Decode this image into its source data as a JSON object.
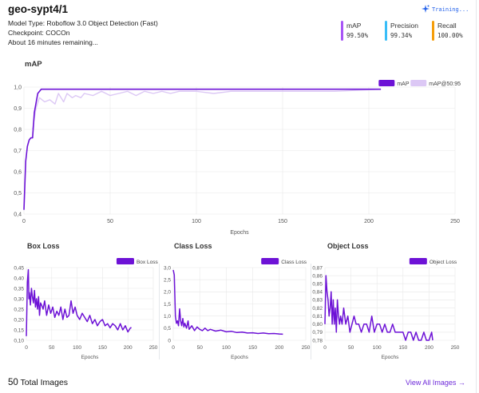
{
  "header": {
    "title": "geo-sypt4/1",
    "model_type": "Model Type: Roboflow 3.0 Object Detection (Fast)",
    "checkpoint": "Checkpoint: COCOn",
    "eta": "About 16 minutes remaining...",
    "status": "Training...",
    "status_icon": "sparkle-icon"
  },
  "metrics": [
    {
      "label": "mAP",
      "value": "99.50%",
      "color": "#a855f7"
    },
    {
      "label": "Precision",
      "value": "99.34%",
      "color": "#38bdf8"
    },
    {
      "label": "Recall",
      "value": "100.00%",
      "color": "#f59e0b"
    }
  ],
  "colors": {
    "primary": "#6d12d6",
    "secondary": "#dcc8f5",
    "grid": "#e8e8e8",
    "link": "#6d28d9"
  },
  "chart_data": [
    {
      "type": "line",
      "title": "mAP",
      "xlabel": "Epochs",
      "ylabel": "",
      "xlim": [
        0,
        250
      ],
      "ylim": [
        0.4,
        1.0
      ],
      "xticks": [
        0,
        50,
        100,
        150,
        200,
        250
      ],
      "yticks": [
        0.4,
        0.5,
        0.6,
        0.7,
        0.8,
        0.9,
        1.0
      ],
      "ytick_labels": [
        "0,4",
        "0,5",
        "0,6",
        "0,7",
        "0,8",
        "0,9",
        "1,0"
      ],
      "grid": true,
      "legend": "top-right",
      "series": [
        {
          "name": "mAP",
          "color": "#6d12d6",
          "x": [
            0,
            1,
            2,
            3,
            4,
            5,
            6,
            8,
            10,
            15,
            20,
            30,
            50,
            100,
            150,
            207
          ],
          "y": [
            0.42,
            0.65,
            0.72,
            0.75,
            0.76,
            0.76,
            0.88,
            0.97,
            0.99,
            0.99,
            0.99,
            0.99,
            0.99,
            0.99,
            0.99,
            0.99
          ]
        },
        {
          "name": "mAP@50:95",
          "color": "#dcc8f5",
          "x": [
            5,
            7,
            9,
            12,
            15,
            18,
            20,
            23,
            25,
            28,
            30,
            33,
            35,
            40,
            45,
            50,
            55,
            60,
            65,
            70,
            75,
            80,
            85,
            90,
            100,
            110,
            120,
            140,
            160,
            180,
            207
          ],
          "y": [
            0.8,
            0.9,
            0.95,
            0.93,
            0.94,
            0.92,
            0.97,
            0.93,
            0.97,
            0.95,
            0.96,
            0.95,
            0.97,
            0.96,
            0.98,
            0.96,
            0.97,
            0.98,
            0.96,
            0.98,
            0.97,
            0.98,
            0.97,
            0.98,
            0.98,
            0.97,
            0.98,
            0.98,
            0.98,
            0.98,
            0.99
          ]
        }
      ]
    },
    {
      "type": "line",
      "title": "Box Loss",
      "xlabel": "Epochs",
      "xlim": [
        0,
        250
      ],
      "ylim": [
        0.1,
        0.45
      ],
      "xticks": [
        0,
        50,
        100,
        150,
        200,
        250
      ],
      "yticks": [
        0.1,
        0.15,
        0.2,
        0.25,
        0.3,
        0.35,
        0.4,
        0.45
      ],
      "ytick_labels": [
        "0,10",
        "0,15",
        "0,20",
        "0,25",
        "0,30",
        "0,35",
        "0,40",
        "0,45"
      ],
      "grid": true,
      "legend": "top-right",
      "series": [
        {
          "name": "Box Loss",
          "color": "#6d12d6",
          "x": [
            0,
            2,
            4,
            5,
            6,
            8,
            10,
            12,
            14,
            16,
            18,
            20,
            22,
            24,
            26,
            28,
            30,
            33,
            36,
            40,
            44,
            48,
            52,
            56,
            60,
            64,
            68,
            72,
            76,
            80,
            84,
            88,
            92,
            96,
            100,
            105,
            110,
            115,
            120,
            125,
            130,
            135,
            140,
            145,
            150,
            155,
            160,
            165,
            170,
            175,
            180,
            185,
            190,
            195,
            200,
            205,
            207
          ],
          "y": [
            0.12,
            0.38,
            0.44,
            0.3,
            0.33,
            0.27,
            0.35,
            0.31,
            0.28,
            0.34,
            0.26,
            0.3,
            0.25,
            0.31,
            0.22,
            0.28,
            0.27,
            0.25,
            0.29,
            0.22,
            0.27,
            0.23,
            0.26,
            0.21,
            0.24,
            0.22,
            0.26,
            0.2,
            0.25,
            0.21,
            0.22,
            0.29,
            0.23,
            0.26,
            0.22,
            0.2,
            0.23,
            0.21,
            0.19,
            0.22,
            0.18,
            0.2,
            0.17,
            0.19,
            0.2,
            0.17,
            0.18,
            0.16,
            0.18,
            0.17,
            0.15,
            0.18,
            0.15,
            0.17,
            0.14,
            0.16,
            0.16
          ]
        }
      ]
    },
    {
      "type": "line",
      "title": "Class Loss",
      "xlabel": "Epochs",
      "xlim": [
        0,
        250
      ],
      "ylim": [
        0,
        3.0
      ],
      "xticks": [
        0,
        50,
        100,
        150,
        200,
        250
      ],
      "yticks": [
        0,
        0.5,
        1.0,
        1.5,
        2.0,
        2.5,
        3.0
      ],
      "ytick_labels": [
        "0",
        "0,5",
        "1,0",
        "1,5",
        "2,0",
        "2,5",
        "3,0"
      ],
      "grid": true,
      "legend": "top-right",
      "series": [
        {
          "name": "Class Loss",
          "color": "#6d12d6",
          "x": [
            0,
            2,
            4,
            6,
            8,
            10,
            12,
            14,
            16,
            18,
            20,
            22,
            25,
            28,
            30,
            35,
            40,
            45,
            50,
            55,
            60,
            65,
            70,
            80,
            90,
            100,
            110,
            120,
            130,
            140,
            150,
            160,
            170,
            180,
            190,
            200,
            207
          ],
          "y": [
            2.9,
            2.7,
            1.0,
            0.7,
            0.8,
            0.6,
            1.3,
            0.8,
            0.6,
            0.9,
            0.55,
            0.7,
            0.5,
            0.8,
            0.45,
            0.6,
            0.4,
            0.55,
            0.45,
            0.4,
            0.5,
            0.4,
            0.45,
            0.38,
            0.42,
            0.35,
            0.37,
            0.32,
            0.34,
            0.3,
            0.31,
            0.28,
            0.3,
            0.27,
            0.28,
            0.26,
            0.25
          ]
        }
      ]
    },
    {
      "type": "line",
      "title": "Object Loss",
      "xlabel": "Epochs",
      "xlim": [
        0,
        250
      ],
      "ylim": [
        0.78,
        0.87
      ],
      "xticks": [
        0,
        50,
        100,
        150,
        200,
        250
      ],
      "yticks": [
        0.78,
        0.79,
        0.8,
        0.81,
        0.82,
        0.83,
        0.84,
        0.85,
        0.86,
        0.87
      ],
      "ytick_labels": [
        "0,78",
        "0,79",
        "0,80",
        "0,81",
        "0,82",
        "0,83",
        "0,84",
        "0,85",
        "0,86",
        "0,87"
      ],
      "grid": true,
      "legend": "top-right",
      "series": [
        {
          "name": "Object Loss",
          "color": "#6d12d6",
          "x": [
            0,
            2,
            4,
            6,
            8,
            10,
            12,
            14,
            16,
            18,
            20,
            22,
            24,
            26,
            28,
            30,
            33,
            36,
            40,
            44,
            48,
            52,
            56,
            60,
            65,
            70,
            75,
            80,
            85,
            90,
            95,
            100,
            105,
            110,
            115,
            120,
            125,
            130,
            135,
            140,
            145,
            150,
            155,
            160,
            165,
            170,
            175,
            180,
            185,
            190,
            195,
            200,
            205,
            207
          ],
          "y": [
            0.8,
            0.86,
            0.84,
            0.83,
            0.81,
            0.82,
            0.84,
            0.8,
            0.83,
            0.8,
            0.82,
            0.79,
            0.83,
            0.81,
            0.8,
            0.81,
            0.8,
            0.82,
            0.8,
            0.81,
            0.79,
            0.8,
            0.81,
            0.8,
            0.8,
            0.79,
            0.8,
            0.8,
            0.79,
            0.81,
            0.79,
            0.8,
            0.8,
            0.79,
            0.8,
            0.79,
            0.79,
            0.8,
            0.79,
            0.79,
            0.79,
            0.79,
            0.78,
            0.79,
            0.79,
            0.78,
            0.79,
            0.78,
            0.78,
            0.79,
            0.78,
            0.78,
            0.79,
            0.78
          ]
        }
      ]
    }
  ],
  "footer": {
    "count": "50",
    "count_label": "Total Images",
    "view_all": "View All Images →"
  }
}
